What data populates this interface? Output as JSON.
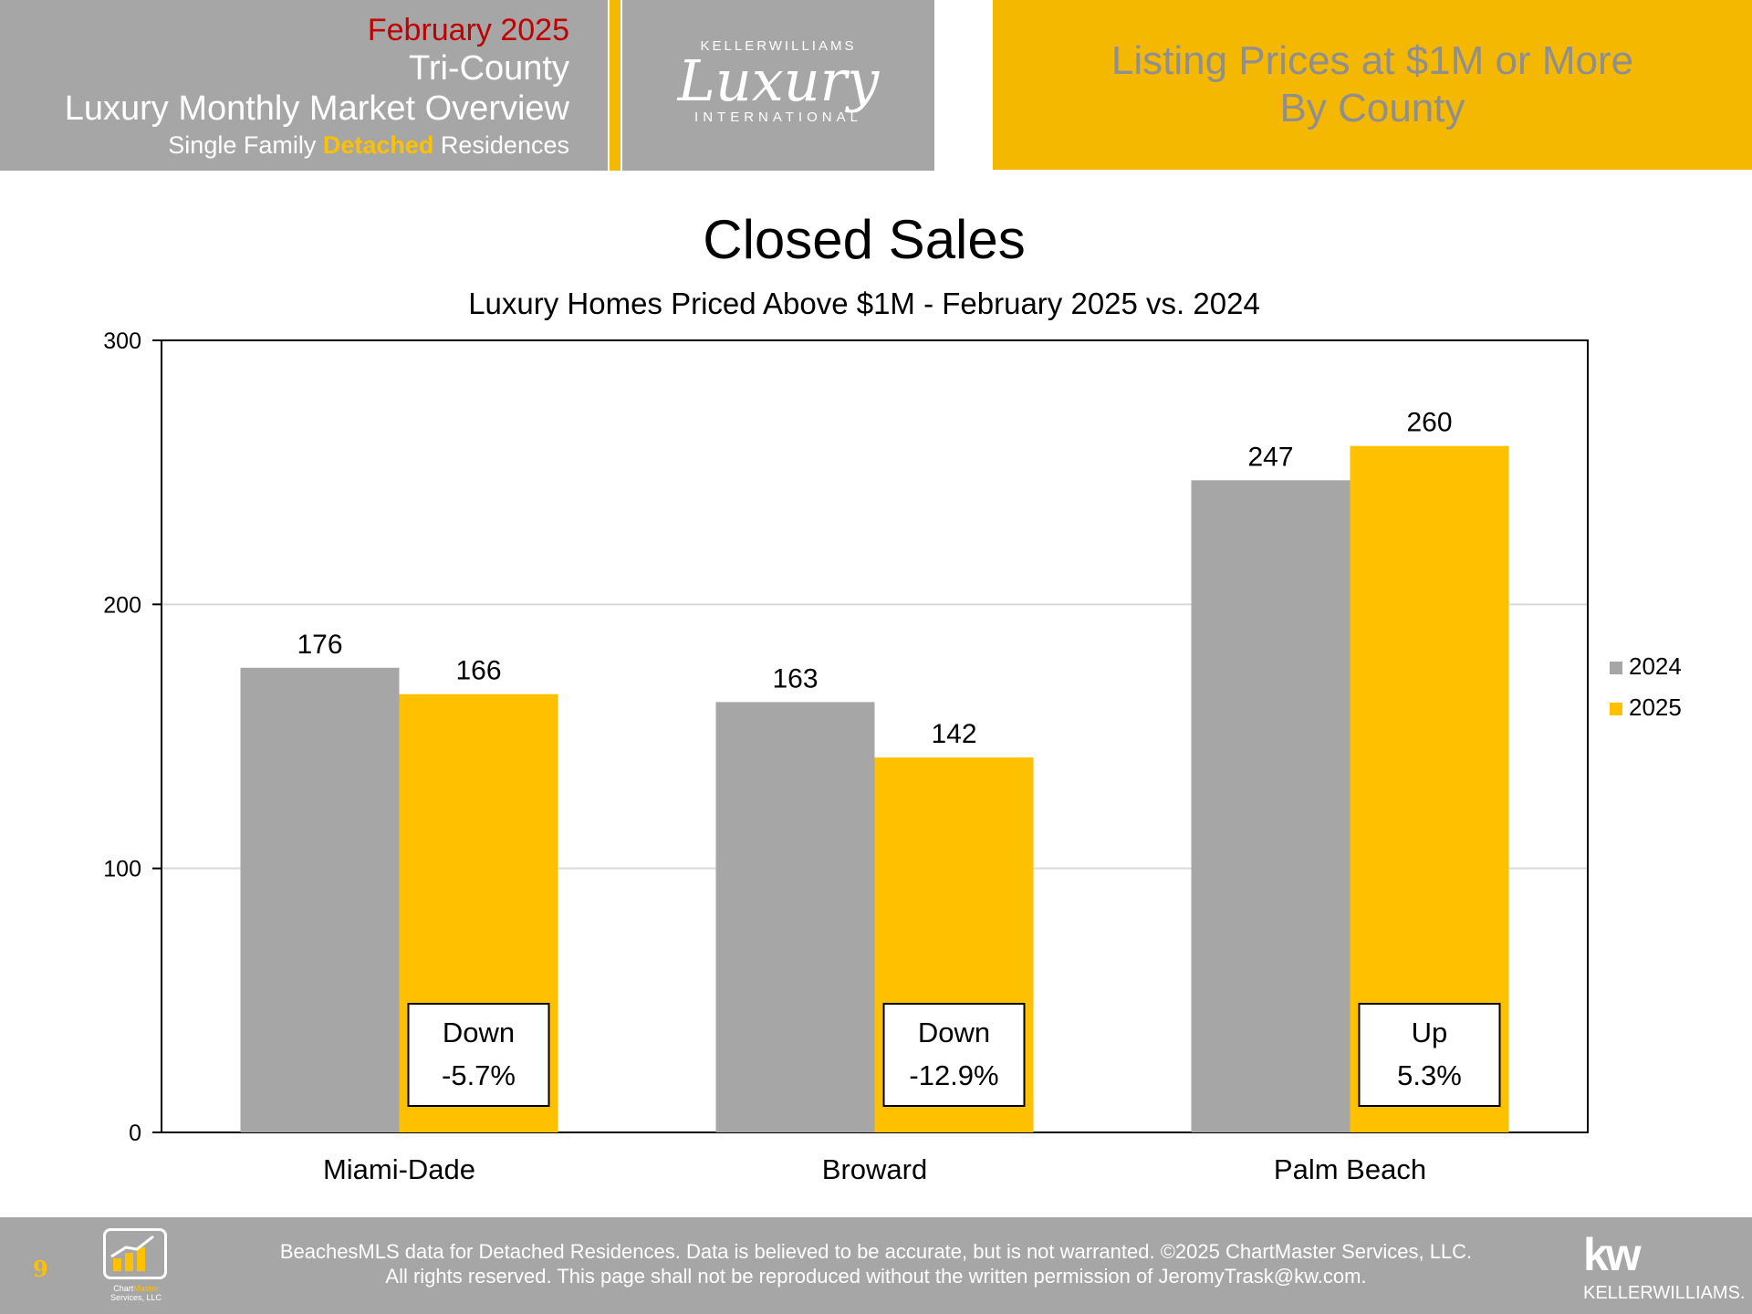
{
  "header": {
    "date": "February 2025",
    "region": "Tri-County",
    "report": "Luxury Monthly Market Overview",
    "segment_pre": "Single Family ",
    "segment_highlight": "Detached",
    "segment_post": " Residences",
    "right_line1": "Listing Prices at $1M or More",
    "right_line2": "By County"
  },
  "logo": {
    "top": "KELLERWILLIAMS",
    "script": "Luxury",
    "bottom": "INTERNATIONAL"
  },
  "colors": {
    "series_2024": "#a6a6a6",
    "series_2025": "#ffc000",
    "header_gray": "#a6a6a6",
    "header_gold": "#f5b800",
    "date_red": "#c00000"
  },
  "chart_data": {
    "type": "bar",
    "title": "Closed Sales",
    "subtitle": "Luxury Homes Priced Above $1M - February 2025 vs. 2024",
    "categories": [
      "Miami-Dade",
      "Broward",
      "Palm Beach"
    ],
    "series": [
      {
        "name": "2024",
        "values": [
          176,
          163,
          247
        ]
      },
      {
        "name": "2025",
        "values": [
          166,
          142,
          260
        ]
      }
    ],
    "ylim": [
      0,
      300
    ],
    "yticks": [
      0,
      100,
      200,
      300
    ],
    "grid": true,
    "legend_position": "right",
    "annotations": [
      {
        "line1": "Down",
        "line2": "-5.7%"
      },
      {
        "line1": "Down",
        "line2": "-12.9%"
      },
      {
        "line1": "Up",
        "line2": "5.3%"
      }
    ]
  },
  "footer": {
    "page": "9",
    "chartmaster_a": "Chart",
    "chartmaster_b": "Master",
    "chartmaster_c": "Services, LLC",
    "note_line1": "BeachesMLS data for Detached Residences.  Data is believed to be accurate, but is not warranted.   ©2025  ChartMaster Services, LLC.",
    "note_line2": "All rights reserved. This page shall not be reproduced without the written permission of JeromyTrask@kw.com.",
    "kw_logo": "kw",
    "kw_name": "KELLERWILLIAMS."
  }
}
